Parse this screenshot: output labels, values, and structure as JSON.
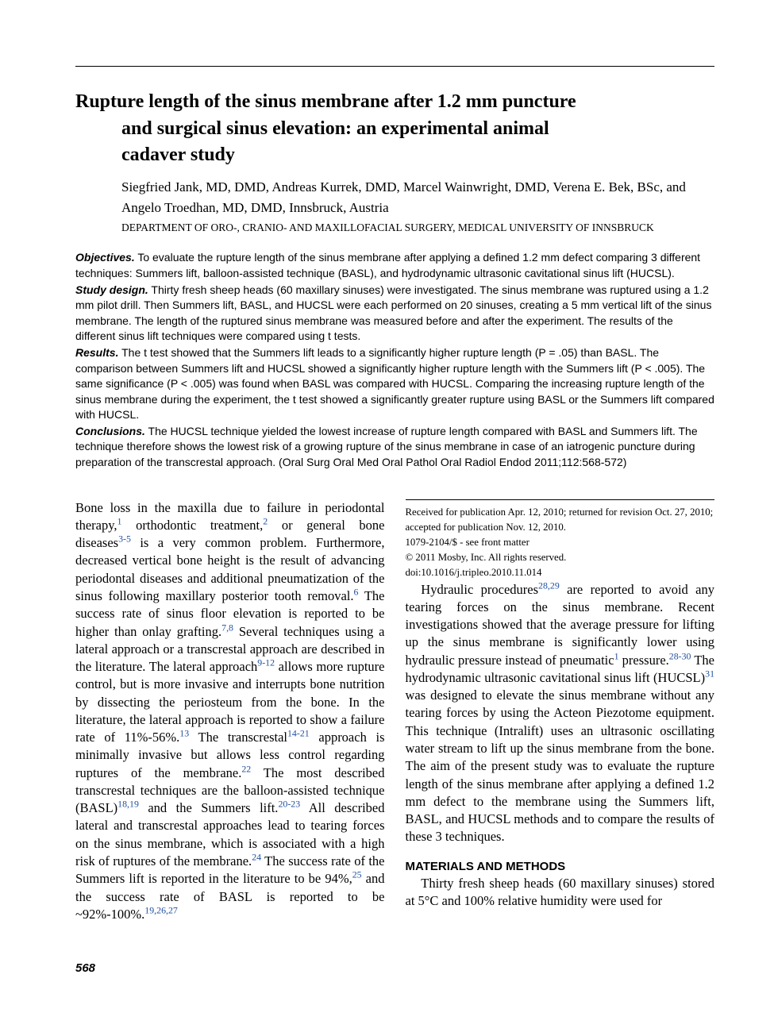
{
  "title": {
    "line1": "Rupture length of the sinus membrane after 1.2 mm puncture",
    "line2": "and surgical sinus elevation: an experimental animal",
    "line3": "cadaver study"
  },
  "authors": "Siegfried Jank, MD, DMD, Andreas Kurrek, DMD, Marcel Wainwright, DMD, Verena E. Bek, BSc, and Angelo Troedhan, MD, DMD, Innsbruck, Austria",
  "affiliation": "DEPARTMENT OF ORO-, CRANIO- AND MAXILLOFACIAL SURGERY, MEDICAL UNIVERSITY OF INNSBRUCK",
  "abstract": {
    "objectives_label": "Objectives.",
    "objectives": " To evaluate the rupture length of the sinus membrane after applying a defined 1.2 mm defect comparing 3 different techniques: Summers lift, balloon-assisted technique (BASL), and hydrodynamic ultrasonic cavitational sinus lift (HUCSL).",
    "design_label": "Study design.",
    "design": " Thirty fresh sheep heads (60 maxillary sinuses) were investigated. The sinus membrane was ruptured using a 1.2 mm pilot drill. Then Summers lift, BASL, and HUCSL were each performed on 20 sinuses, creating a 5 mm vertical lift of the sinus membrane. The length of the ruptured sinus membrane was measured before and after the experiment. The results of the different sinus lift techniques were compared using t tests.",
    "results_label": "Results.",
    "results": " The t test showed that the Summers lift leads to a significantly higher rupture length (P = .05) than BASL. The comparison between Summers lift and HUCSL showed a significantly higher rupture length with the Summers lift (P < .005). The same significance (P < .005) was found when BASL was compared with HUCSL. Comparing the increasing rupture length of the sinus membrane during the experiment, the t test showed a significantly greater rupture using BASL or the Summers lift compared with HUCSL.",
    "conclusions_label": "Conclusions.",
    "conclusions": " The HUCSL technique yielded the lowest increase of rupture length compared with BASL and Summers lift. The technique therefore shows the lowest risk of a growing rupture of the sinus membrane in case of an iatrogenic puncture during preparation of the transcrestal approach. (Oral Surg Oral Med Oral Pathol Oral Radiol Endod 2011;112:568-572)"
  },
  "body": {
    "p1a": "Bone loss in the maxilla due to failure in periodontal therapy,",
    "s1": "1",
    "p1b": " orthodontic treatment,",
    "s2": "2",
    "p1c": " or general bone diseases",
    "s3": "3-5",
    "p1d": " is a very common problem. Furthermore, decreased vertical bone height is the result of advancing periodontal diseases and additional pneumatization of the sinus following maxillary posterior tooth removal.",
    "s6": "6",
    "p1e": " The success rate of sinus floor elevation is reported to be higher than onlay grafting.",
    "s7": "7,8",
    "p1f": " Several techniques using a lateral approach or a transcrestal approach are described in the literature. The lateral approach",
    "s9": "9-12",
    "p1g": " allows more rupture control, but is more invasive and interrupts bone nutrition by dissecting the periosteum from the bone. In the literature, the lateral approach is reported to show a failure rate of 11%-56%.",
    "s13": "13",
    "p1h": " The transcrestal",
    "s14": "14-21",
    "p1i": " approach is minimally invasive but allows less control regarding ruptures of the membrane.",
    "s22": "22",
    "p1j": " The most described transcrestal techniques are the balloon-assisted technique (BASL)",
    "s18": "18,19",
    "p1k": " and the Summers ",
    "p2a": "lift.",
    "s20": "20-23",
    "p2b": " All described lateral and transcrestal approaches lead to tearing forces on the sinus membrane, which is associated with a high risk of ruptures of the membrane.",
    "s24": "24",
    "p2c": " The success rate of the Summers lift is reported in the literature to be 94%,",
    "s25": "25",
    "p2d": " and the success rate of BASL is reported to be ~92%-100%.",
    "s19": "19,26,27",
    "p3a": "Hydraulic procedures",
    "s28": "28,29",
    "p3b": " are reported to avoid any tearing forces on the sinus membrane. Recent investigations showed that the average pressure for lifting up the sinus membrane is significantly lower using hydraulic pressure instead of pneumatic",
    "s1b": "1",
    "p3c": " pressure.",
    "s28b": "28-30",
    "p3d": " The hydrodynamic ultrasonic cavitational sinus lift (HUCSL)",
    "s31": "31",
    "p3e": " was designed to elevate the sinus membrane without any tearing forces by using the Acteon Piezotome equipment. This technique (Intralift) uses an ultrasonic oscillating water stream to lift up the sinus membrane from the bone. The aim of the present study was to evaluate the rupture length of the sinus membrane after applying a defined 1.2 mm defect to the membrane using the Summers lift, BASL, and HUCSL methods and to compare the results of these 3 techniques."
  },
  "section_heading": "MATERIALS AND METHODS",
  "methods_p1": "Thirty fresh sheep heads (60 maxillary sinuses) stored at 5°C and 100% relative humidity were used for",
  "footnotes": {
    "l1": "Received for publication Apr. 12, 2010; returned for revision Oct. 27, 2010; accepted for publication Nov. 12, 2010.",
    "l2": "1079-2104/$ - see front matter",
    "l3": "© 2011 Mosby, Inc. All rights reserved.",
    "l4": "doi:10.1016/j.tripleo.2010.11.014"
  },
  "page_number": "568",
  "colors": {
    "link": "#2050a0",
    "text": "#000000",
    "background": "#ffffff"
  },
  "typography": {
    "title_fontsize_pt": 18,
    "body_fontsize_pt": 12,
    "abstract_fontsize_pt": 10.5,
    "body_font": "Times New Roman",
    "abstract_font": "Arial"
  }
}
